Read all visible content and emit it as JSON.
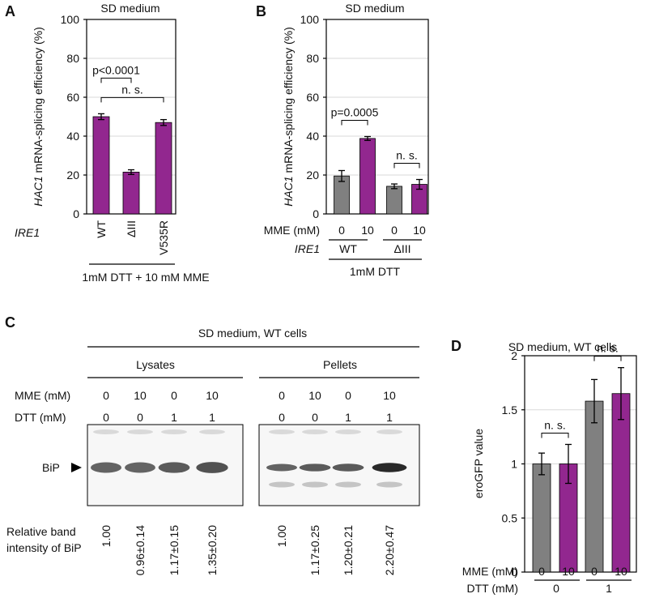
{
  "colors": {
    "purple": "#92278f",
    "gray": "#808080"
  },
  "panels": {
    "a": "A",
    "b": "B",
    "c": "C",
    "d": "D"
  },
  "chart_data": [
    {
      "id": "A",
      "type": "bar",
      "title": "SD medium",
      "ylabel_italic": "HAC1",
      "ylabel_rest": " mRNA-splicing efficiency (%)",
      "ylim": [
        0,
        100
      ],
      "yticks": [
        0,
        20,
        40,
        60,
        80,
        100
      ],
      "row_label": "IRE1",
      "categories": [
        "WT",
        "ΔIII",
        "V535R"
      ],
      "values": [
        50,
        21.5,
        47
      ],
      "errors": [
        1.5,
        1.2,
        1.5
      ],
      "colors": [
        "#92278f",
        "#92278f",
        "#92278f"
      ],
      "condition": "1mM DTT + 10 mM MME",
      "annotations": [
        {
          "text": "p<0.0001",
          "from": 0,
          "to": 1
        },
        {
          "text": "n. s.",
          "from": 0,
          "to": 2
        }
      ]
    },
    {
      "id": "B",
      "type": "bar",
      "title": "SD medium",
      "ylabel_italic": "HAC1",
      "ylabel_rest": " mRNA-splicing efficiency (%)",
      "ylim": [
        0,
        100
      ],
      "yticks": [
        0,
        20,
        40,
        60,
        80,
        100
      ],
      "row1_label": "MME (mM)",
      "row1": [
        "0",
        "10",
        "0",
        "10"
      ],
      "row2_label": "IRE1",
      "row2": [
        "WT",
        "ΔIII"
      ],
      "condition": "1mM DTT",
      "values": [
        19.5,
        38.8,
        14.2,
        15.2
      ],
      "errors": [
        2.8,
        1.0,
        1.2,
        2.5
      ],
      "colors": [
        "#808080",
        "#92278f",
        "#808080",
        "#92278f"
      ],
      "annotations": [
        {
          "text": "p=0.0005",
          "from": 0,
          "to": 1
        },
        {
          "text": "n. s.",
          "from": 2,
          "to": 3
        }
      ]
    },
    {
      "id": "D",
      "type": "bar",
      "title": "SD medium, WT cells",
      "ylabel": "eroGFP value",
      "ylim": [
        0,
        2
      ],
      "yticks": [
        "0",
        "0.5",
        "1",
        "1.5",
        "2"
      ],
      "row1_label": "MME (mM)",
      "row1": [
        "0",
        "10",
        "0",
        "10"
      ],
      "row2_label": "DTT (mM)",
      "row2": [
        "0",
        "1"
      ],
      "values": [
        1.0,
        1.0,
        1.58,
        1.65
      ],
      "errors": [
        0.1,
        0.18,
        0.2,
        0.24
      ],
      "colors": [
        "#808080",
        "#92278f",
        "#808080",
        "#92278f"
      ],
      "annotations": [
        {
          "text": "n. s.",
          "from": 0,
          "to": 1
        },
        {
          "text": "n. s.",
          "from": 2,
          "to": 3
        }
      ]
    }
  ],
  "blot": {
    "title": "SD medium, WT cells",
    "groups": [
      "Lysates",
      "Pellets"
    ],
    "mme_label": "MME (mM)",
    "mme": [
      "0",
      "10",
      "0",
      "10"
    ],
    "dtt_label": "DTT (mM)",
    "dtt": [
      "0",
      "0",
      "1",
      "1"
    ],
    "band_label": "BiP",
    "intensity_label_1": "Relative band",
    "intensity_label_2": "intensity of BiP",
    "lysates_values": [
      "1.00",
      "0.96±0.14",
      "1.17±0.15",
      "1.35±0.20"
    ],
    "pellets_values": [
      "1.00",
      "1.17±0.25",
      "1.20±0.21",
      "2.20±0.47"
    ]
  }
}
